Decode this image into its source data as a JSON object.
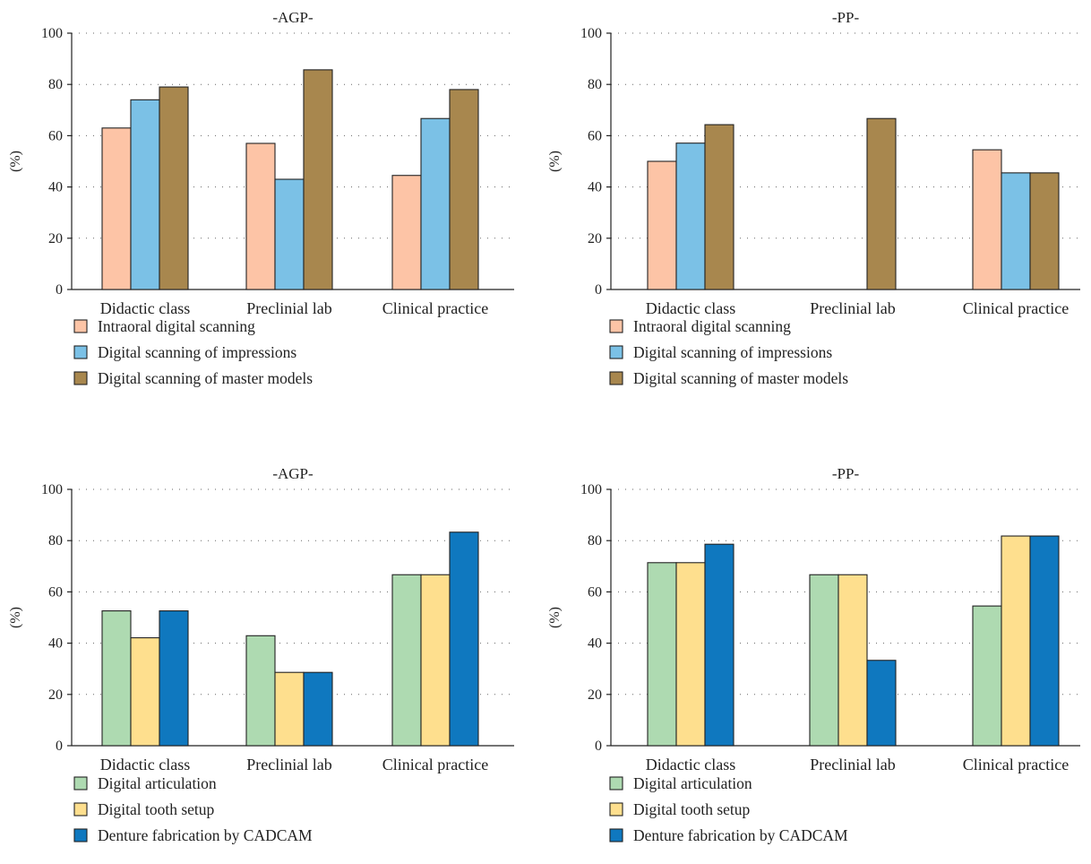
{
  "chart_data": [
    {
      "type": "bar",
      "title": "-AGP-",
      "ylabel": "(%)",
      "xlabel": "",
      "ylim": [
        0,
        100
      ],
      "yticks": [
        0,
        20,
        40,
        60,
        80,
        100
      ],
      "grid": "horizontal-dotted",
      "legend_position": "bottom",
      "categories": [
        "Didactic class",
        "Preclinial lab",
        "Clinical practice"
      ],
      "series": [
        {
          "name": "Intraoral digital scanning",
          "color": "#fdc4a6",
          "values": [
            63,
            57,
            44.5
          ]
        },
        {
          "name": "Digital scanning of impressions",
          "color": "#7bc1e6",
          "values": [
            74,
            43,
            66.7
          ]
        },
        {
          "name": "Digital scanning of master models",
          "color": "#a8874e",
          "values": [
            79,
            85.7,
            78
          ]
        }
      ]
    },
    {
      "type": "bar",
      "title": "-PP-",
      "ylabel": "(%)",
      "xlabel": "",
      "ylim": [
        0,
        100
      ],
      "yticks": [
        0,
        20,
        40,
        60,
        80,
        100
      ],
      "grid": "horizontal-dotted",
      "legend_position": "bottom",
      "categories": [
        "Didactic class",
        "Preclinial lab",
        "Clinical practice"
      ],
      "series": [
        {
          "name": "Intraoral digital scanning",
          "color": "#fdc4a6",
          "values": [
            50,
            0,
            54.5
          ]
        },
        {
          "name": "Digital scanning of impressions",
          "color": "#7bc1e6",
          "values": [
            57.1,
            0,
            45.5
          ]
        },
        {
          "name": "Digital scanning of master models",
          "color": "#a8874e",
          "values": [
            64.3,
            66.7,
            45.5
          ]
        }
      ]
    },
    {
      "type": "bar",
      "title": "-AGP-",
      "ylabel": "(%)",
      "xlabel": "",
      "ylim": [
        0,
        100
      ],
      "yticks": [
        0,
        20,
        40,
        60,
        80,
        100
      ],
      "grid": "horizontal-dotted",
      "legend_position": "bottom",
      "categories": [
        "Didactic class",
        "Preclinial lab",
        "Clinical practice"
      ],
      "series": [
        {
          "name": "Digital articulation",
          "color": "#aedab1",
          "values": [
            52.6,
            42.9,
            66.7
          ]
        },
        {
          "name": "Digital tooth setup",
          "color": "#fedf8e",
          "values": [
            42.1,
            28.6,
            66.7
          ]
        },
        {
          "name": "Denture fabrication by CADCAM",
          "color": "#0f78bf",
          "values": [
            52.6,
            28.6,
            83.3
          ]
        }
      ]
    },
    {
      "type": "bar",
      "title": "-PP-",
      "ylabel": "(%)",
      "xlabel": "",
      "ylim": [
        0,
        100
      ],
      "yticks": [
        0,
        20,
        40,
        60,
        80,
        100
      ],
      "grid": "horizontal-dotted",
      "legend_position": "bottom",
      "categories": [
        "Didactic class",
        "Preclinial lab",
        "Clinical practice"
      ],
      "series": [
        {
          "name": "Digital articulation",
          "color": "#aedab1",
          "values": [
            71.4,
            66.7,
            54.5
          ]
        },
        {
          "name": "Digital tooth setup",
          "color": "#fedf8e",
          "values": [
            71.4,
            66.7,
            81.8
          ]
        },
        {
          "name": "Denture fabrication by CADCAM",
          "color": "#0f78bf",
          "values": [
            78.6,
            33.3,
            81.8
          ]
        }
      ]
    }
  ]
}
